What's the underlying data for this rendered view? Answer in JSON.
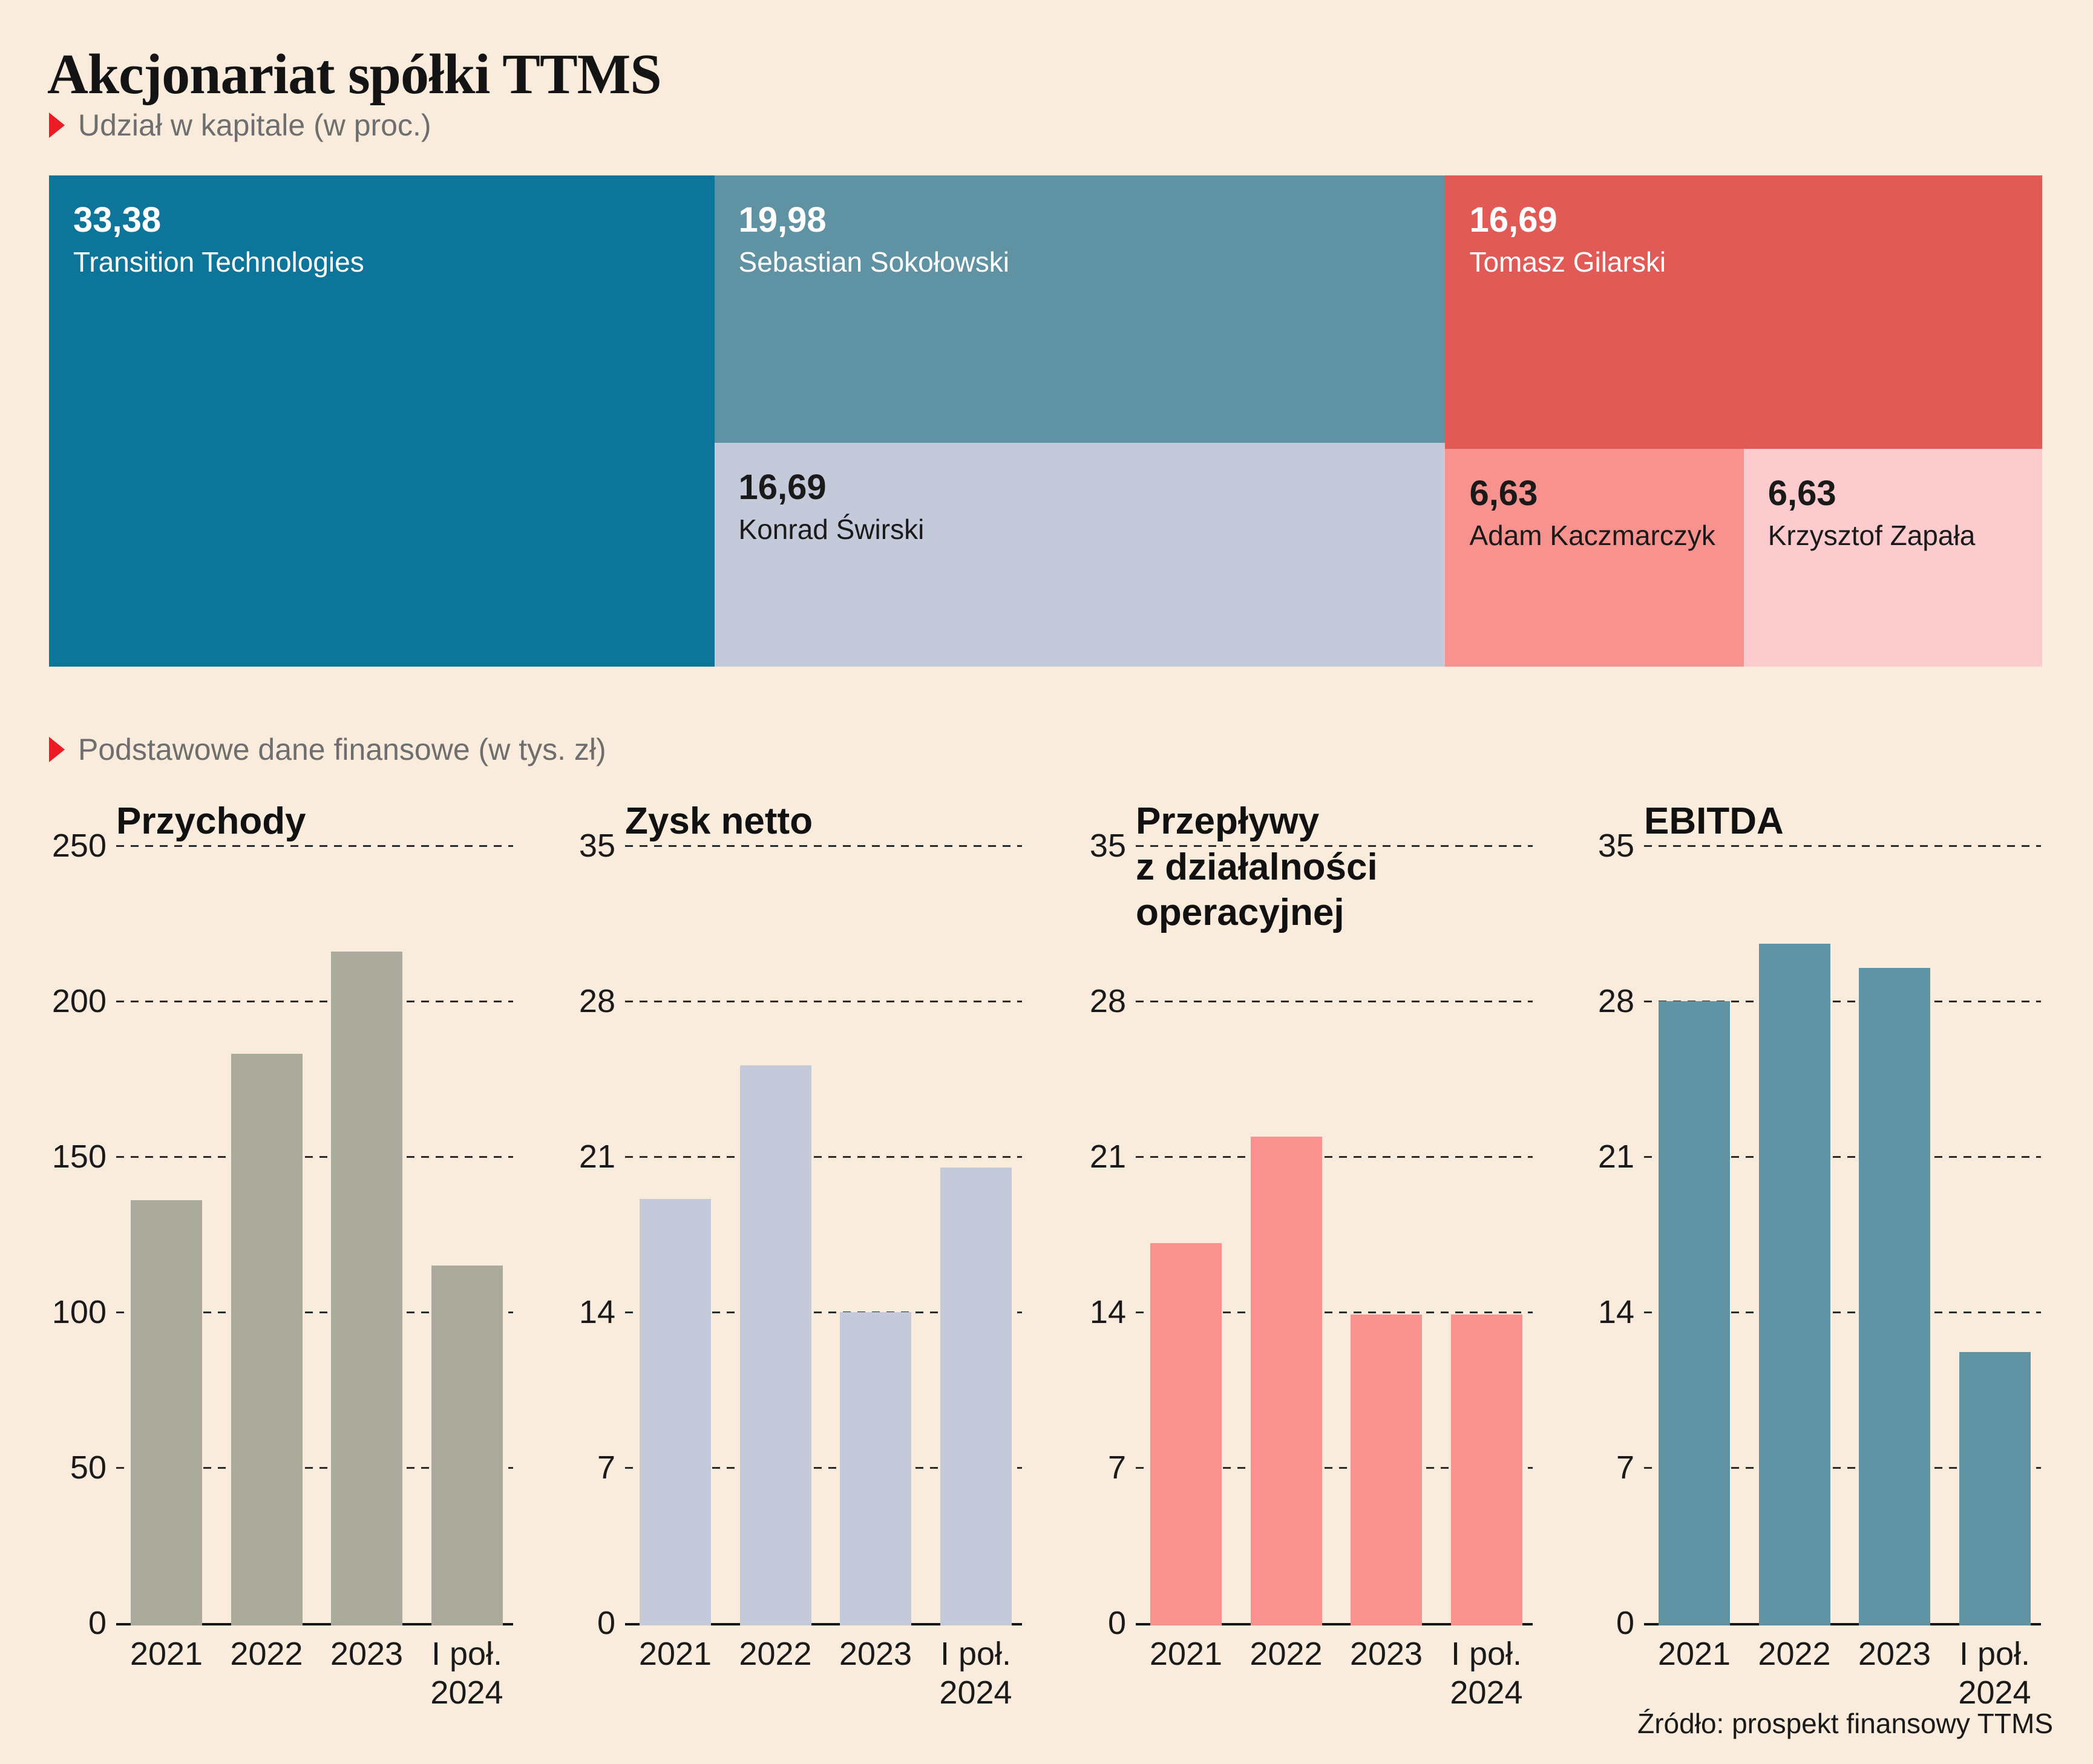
{
  "page": {
    "title": "Akcjonariat spółki TTMS",
    "subtitle": "Udział w kapitale (w proc.)",
    "section2_label": "Podstawowe dane finansowe (w tys. zł)",
    "source": "Źródło: prospekt finansowy TTMS",
    "background": "#faecdd",
    "accent_red": "#ed1c24"
  },
  "treemap": {
    "unit": "proc.",
    "items": [
      {
        "name": "Transition Technologies",
        "value_label": "33,38",
        "value": 33.38,
        "color": "#0d7599",
        "text_color": "#ffffff"
      },
      {
        "name": "Sebastian Sokołowski",
        "value_label": "19,98",
        "value": 19.98,
        "color": "#5f93a4",
        "text_color": "#ffffff"
      },
      {
        "name": "Konrad Świrski",
        "value_label": "16,69",
        "value": 16.69,
        "color": "#c4cada",
        "text_color": "#1a1a1a"
      },
      {
        "name": "Tomasz Gilarski",
        "value_label": "16,69",
        "value": 16.69,
        "color": "#e25a56",
        "text_color": "#ffffff"
      },
      {
        "name": "Adam Kaczmarczyk",
        "value_label": "6,63",
        "value": 6.63,
        "color": "#f8928e",
        "text_color": "#1a1a1a"
      },
      {
        "name": "Krzysztof Zapała",
        "value_label": "6,63",
        "value": 6.63,
        "color": "#fbcbcd",
        "text_color": "#1a1a1a"
      }
    ]
  },
  "chart_data": [
    {
      "type": "bar",
      "title": "Przychody",
      "title_lines": "Przychody",
      "categories": [
        "2021",
        "2022",
        "2023",
        "I poł.\n2024"
      ],
      "values": [
        136,
        183,
        216,
        115
      ],
      "yticks": [
        0,
        50,
        100,
        150,
        200,
        250
      ],
      "ylim": [
        0,
        250
      ],
      "color": "#abab9d",
      "grid": "dashed",
      "legend": "none"
    },
    {
      "type": "bar",
      "title": "Zysk netto",
      "title_lines": "Zysk netto",
      "categories": [
        "2021",
        "2022",
        "2023",
        "I poł.\n2024"
      ],
      "values": [
        19.1,
        25.1,
        14,
        20.5
      ],
      "yticks": [
        0,
        7,
        14,
        21,
        28,
        35
      ],
      "ylim": [
        0,
        35
      ],
      "color": "#c4cada",
      "grid": "dashed",
      "legend": "none"
    },
    {
      "type": "bar",
      "title": "Przepływy z działalności operacyjnej",
      "title_lines": "Przepływy\nz działalności\noperacyjnej",
      "categories": [
        "2021",
        "2022",
        "2023",
        "I poł.\n2024"
      ],
      "values": [
        17.1,
        21.9,
        13.9,
        13.9
      ],
      "yticks": [
        0,
        7,
        14,
        21,
        28,
        35
      ],
      "ylim": [
        0,
        35
      ],
      "color": "#f9928f",
      "grid": "dashed",
      "legend": "none"
    },
    {
      "type": "bar",
      "title": "EBITDA",
      "title_lines": "EBITDA",
      "categories": [
        "2021",
        "2022",
        "2023",
        "I poł.\n2024"
      ],
      "values": [
        28,
        30.6,
        29.5,
        12.2
      ],
      "yticks": [
        0,
        7,
        14,
        21,
        28,
        35
      ],
      "ylim": [
        0,
        35
      ],
      "color": "#5f93a4",
      "grid": "dashed",
      "legend": "none"
    }
  ]
}
